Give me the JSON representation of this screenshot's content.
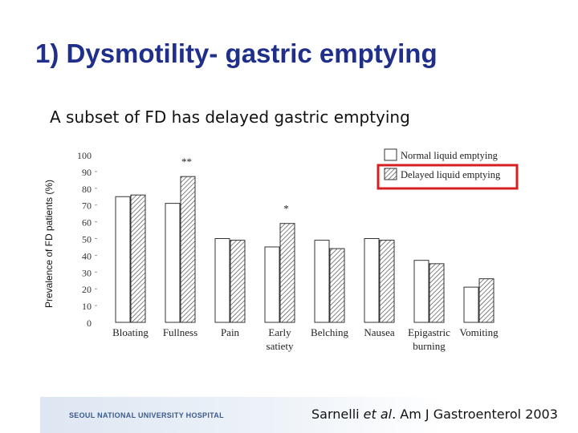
{
  "slide": {
    "title": "1) Dysmotility- gastric emptying",
    "subtitle": "A subset of FD has delayed gastric emptying"
  },
  "footer": {
    "hospital": "SEOUL NATIONAL UNIVERSITY HOSPITAL",
    "citation_author": "Sarnelli",
    "citation_etal": "et al",
    "citation_rest": ". Am J Gastroenterol 2003"
  },
  "colors": {
    "title": "#1f2f8a",
    "highlight_box": "#d42020",
    "normal_fill": "#ffffff",
    "delayed_fill": "hatched"
  },
  "chart_data": {
    "type": "bar",
    "ylabel": "Prevalence of FD patients (%)",
    "ylim": [
      0,
      100
    ],
    "yticks": [
      0,
      10,
      20,
      30,
      40,
      50,
      60,
      70,
      80,
      90,
      100
    ],
    "categories": [
      "Bloating",
      "Fullness",
      "Pain",
      "Early satiety",
      "Belching",
      "Nausea",
      "Epigastric burning",
      "Vomiting"
    ],
    "category_lines": [
      [
        "Bloating"
      ],
      [
        "Fullness"
      ],
      [
        "Pain"
      ],
      [
        "Early",
        "satiety"
      ],
      [
        "Belching"
      ],
      [
        "Nausea"
      ],
      [
        "Epigastric",
        "burning"
      ],
      [
        "Vomiting"
      ]
    ],
    "series": [
      {
        "name": "Normal liquid emptying",
        "values": [
          75,
          71,
          50,
          45,
          49,
          50,
          37,
          21
        ]
      },
      {
        "name": "Delayed liquid emptying",
        "values": [
          76,
          87,
          49,
          59,
          44,
          49,
          35,
          26
        ]
      }
    ],
    "annotations": [
      {
        "category": "Fullness",
        "text": "**"
      },
      {
        "category": "Early satiety",
        "text": "*"
      }
    ],
    "legend": {
      "placement": "top-right",
      "highlighted_entry": "Delayed liquid emptying"
    },
    "grid": false
  }
}
